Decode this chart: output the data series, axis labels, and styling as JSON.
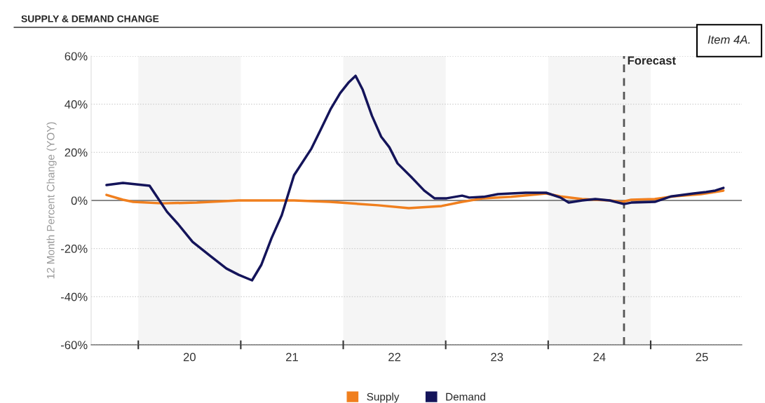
{
  "chart_data": {
    "type": "line",
    "title": "SUPPLY & DEMAND CHANGE",
    "ylabel": "12 Month Percent Change (YOY)",
    "annotations": [
      "Item 4A."
    ],
    "series": [
      {
        "name": "Supply",
        "color": "#f07f1e",
        "x": [
          19.19,
          19.35,
          19.45,
          19.73,
          20.07,
          20.48,
          21.02,
          21.37,
          21.84,
          22.14,
          22.46,
          22.66,
          22.87,
          23.14,
          23.48,
          23.62,
          23.83,
          24.1,
          24.22,
          24.31,
          24.54,
          24.72,
          24.99,
          25.21
        ],
        "values": [
          2.3,
          0.3,
          -0.6,
          -1.2,
          -0.9,
          0,
          0,
          -0.6,
          -2,
          -3.2,
          -2.3,
          -0.6,
          0.9,
          1.5,
          2.9,
          1.7,
          0.6,
          0,
          -0.6,
          0.3,
          0.6,
          1.7,
          2.6,
          4.1
        ]
      },
      {
        "name": "Demand",
        "color": "#14145a",
        "x": [
          19.19,
          19.35,
          19.61,
          19.68,
          19.78,
          19.89,
          20.03,
          20.2,
          20.36,
          20.48,
          20.61,
          20.7,
          20.8,
          20.9,
          21.02,
          21.19,
          21.28,
          21.38,
          21.47,
          21.55,
          21.62,
          21.69,
          21.78,
          21.87,
          21.95,
          22.03,
          22.16,
          22.29,
          22.39,
          22.51,
          22.66,
          22.73,
          22.87,
          23.01,
          23.14,
          23.28,
          23.48,
          23.62,
          23.7,
          23.83,
          23.96,
          24.1,
          24.24,
          24.31,
          24.54,
          24.7,
          24.92,
          25.04,
          25.13,
          25.21
        ],
        "values": [
          6.4,
          7.3,
          6.1,
          1.7,
          -4.7,
          -9.9,
          -17.2,
          -23,
          -28.3,
          -30.9,
          -33.2,
          -26.8,
          -15.7,
          -6.1,
          10.5,
          21.6,
          29.4,
          38.2,
          44.6,
          48.9,
          51.8,
          46,
          35.2,
          26.5,
          22.1,
          15.4,
          9.9,
          4.1,
          0.9,
          0.9,
          2,
          1.2,
          1.5,
          2.6,
          2.9,
          3.2,
          3.2,
          1.2,
          -0.9,
          0,
          0.6,
          0,
          -1.5,
          -0.9,
          -0.6,
          1.7,
          2.9,
          3.5,
          4.1,
          5.2
        ]
      }
    ],
    "xlim": [
      19.04,
      25.39
    ],
    "xticks": [
      {
        "value": 19.5,
        "label": null
      },
      20,
      {
        "value": 20.5,
        "label": null
      },
      21,
      {
        "value": 21.5,
        "label": null
      },
      22,
      {
        "value": 22.5,
        "label": null
      },
      23,
      {
        "value": 23.5,
        "label": null
      },
      24,
      {
        "value": 24.5,
        "label": null
      },
      25
    ],
    "ylim": [
      -60,
      60
    ],
    "yticks": [
      {
        "value": -60,
        "label": "-60%"
      },
      {
        "value": -40,
        "label": "-40%"
      },
      {
        "value": -20,
        "label": "-20%"
      },
      {
        "value": 0,
        "label": "0%"
      },
      {
        "value": 20,
        "label": "20%"
      },
      {
        "value": 40,
        "label": "40%"
      },
      {
        "value": 60,
        "label": "60%"
      }
    ],
    "grid": "y",
    "bands": [
      {
        "axis": "x",
        "from": 19.5,
        "to": 20.5,
        "color": "#f5f5f5"
      },
      {
        "axis": "x",
        "from": 21.5,
        "to": 22.5,
        "color": "#f5f5f5"
      },
      {
        "axis": "x",
        "from": 23.5,
        "to": 24.5,
        "color": "#f5f5f5"
      }
    ],
    "ref_lines": [
      {
        "axis": "y",
        "value": 0,
        "color": "#888888",
        "line_style": "solid"
      },
      {
        "axis": "x",
        "value": 24.24,
        "label": "Forecast",
        "color": "#555555",
        "line_style": "dashed"
      }
    ],
    "legend": "bottom",
    "marker": "none",
    "line_style": "solid"
  }
}
